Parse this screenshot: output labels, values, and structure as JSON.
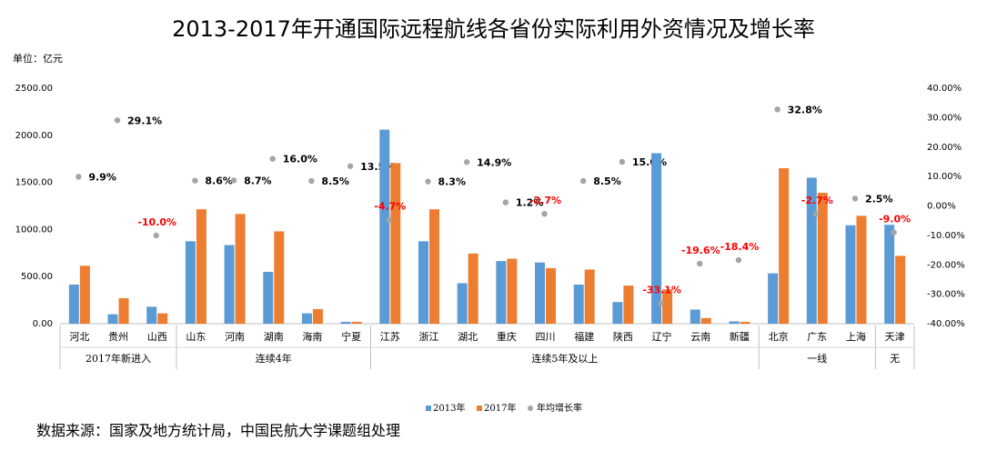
{
  "chart_title": "2013-2017年开通国际远程航线各省份实际利用外资情况及增长率",
  "unit_label": "单位：亿元",
  "source_note": "数据来源：国家及地方统计局，中国民航大学课题组处理",
  "colors": {
    "bar2013": "#5b9bd5",
    "bar2017": "#ed7d31",
    "rate": "#a5a5a5",
    "negative_label": "#ff0000"
  },
  "chart_data": {
    "type": "bar",
    "categories": [
      "河北",
      "贵州",
      "山西",
      "山东",
      "河南",
      "湖南",
      "海南",
      "宁夏",
      "江苏",
      "浙江",
      "湖北",
      "重庆",
      "四川",
      "福建",
      "陕西",
      "辽宁",
      "云南",
      "新疆",
      "北京",
      "广东",
      "上海",
      "天津"
    ],
    "groups": [
      {
        "label": "2017年新进入",
        "start": 0,
        "end": 2
      },
      {
        "label": "连续4年",
        "start": 3,
        "end": 7
      },
      {
        "label": "连续5年及以上",
        "start": 8,
        "end": 17
      },
      {
        "label": "一线",
        "start": 18,
        "end": 20
      },
      {
        "label": "无",
        "start": 21,
        "end": 21
      }
    ],
    "series": [
      {
        "name": "2013年",
        "values": [
          415,
          100,
          180,
          875,
          835,
          550,
          110,
          20,
          2060,
          875,
          430,
          665,
          650,
          415,
          230,
          1810,
          150,
          25,
          535,
          1550,
          1045,
          1050
        ]
      },
      {
        "name": "2017年",
        "values": [
          615,
          270,
          110,
          1215,
          1165,
          980,
          155,
          20,
          1705,
          1215,
          745,
          690,
          590,
          575,
          405,
          365,
          60,
          20,
          1650,
          1390,
          1145,
          720
        ]
      },
      {
        "name": "年均增长率",
        "axis": "right",
        "values": [
          9.9,
          29.1,
          -10.0,
          8.6,
          8.7,
          16.0,
          8.5,
          13.5,
          -4.7,
          8.3,
          14.9,
          1.2,
          -2.7,
          8.5,
          15.0,
          -33.1,
          -19.6,
          -18.4,
          32.8,
          -2.7,
          2.5,
          -9.0
        ]
      }
    ],
    "rate_labels": [
      "9.9%",
      "29.1%",
      "-10.0%",
      "8.6%",
      "8.7%",
      "16.0%",
      "8.5%",
      "13.5%",
      "-4.7%",
      "8.3%",
      "14.9%",
      "1.2%",
      "-2.7%",
      "8.5%",
      "15.0%",
      "-33.1%",
      "-19.6%",
      "-18.4%",
      "32.8%",
      "-2.7%",
      "2.5%",
      "-9.0%"
    ],
    "y_left": {
      "min": 0,
      "max": 2500,
      "ticks": [
        "0.00",
        "500.00",
        "1000.00",
        "1500.00",
        "2000.00",
        "2500.00"
      ]
    },
    "y_right": {
      "min": -40,
      "max": 40,
      "ticks": [
        "-40.00%",
        "-30.00%",
        "-20.00%",
        "-10.00%",
        "0.00%",
        "10.00%",
        "20.00%",
        "30.00%",
        "40.00%"
      ]
    },
    "legend": [
      "2013年",
      "2017年",
      "年均增长率"
    ],
    "legend_position": "bottom"
  }
}
